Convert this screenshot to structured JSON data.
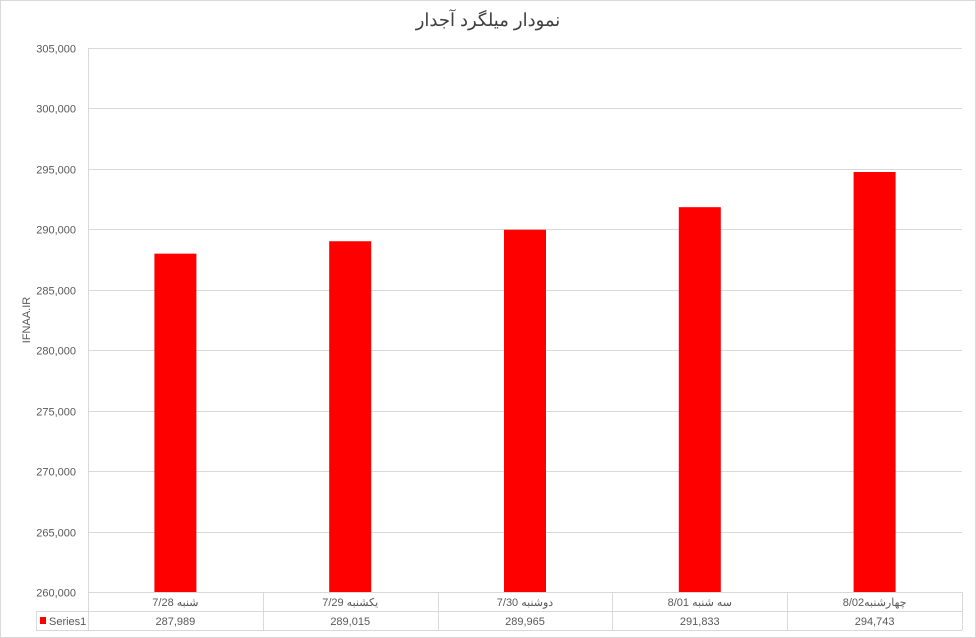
{
  "chart_data": {
    "type": "bar",
    "title": "نمودار میلگرد آجدار",
    "ylabel": "IFNAA.IR",
    "xlabel": "",
    "categories": [
      "شنبه 7/28",
      "یکشنبه 7/29",
      "دوشنبه 7/30",
      "سه شنبه 8/01",
      "چهارشنبه8/02"
    ],
    "series": [
      {
        "name": "Series1",
        "values": [
          287989,
          289015,
          289965,
          291833,
          294743
        ],
        "color": "#ff0000"
      }
    ],
    "value_labels": [
      "287,989",
      "289,015",
      "289,965",
      "291,833",
      "294,743"
    ],
    "ylim": [
      260000,
      305000
    ],
    "yticks": [
      260000,
      265000,
      270000,
      275000,
      280000,
      285000,
      290000,
      295000,
      300000,
      305000
    ],
    "ytick_labels": [
      "260,000",
      "265,000",
      "270,000",
      "275,000",
      "280,000",
      "285,000",
      "290,000",
      "295,000",
      "300,000",
      "305,000"
    ],
    "grid": true,
    "legend": "data-table"
  }
}
